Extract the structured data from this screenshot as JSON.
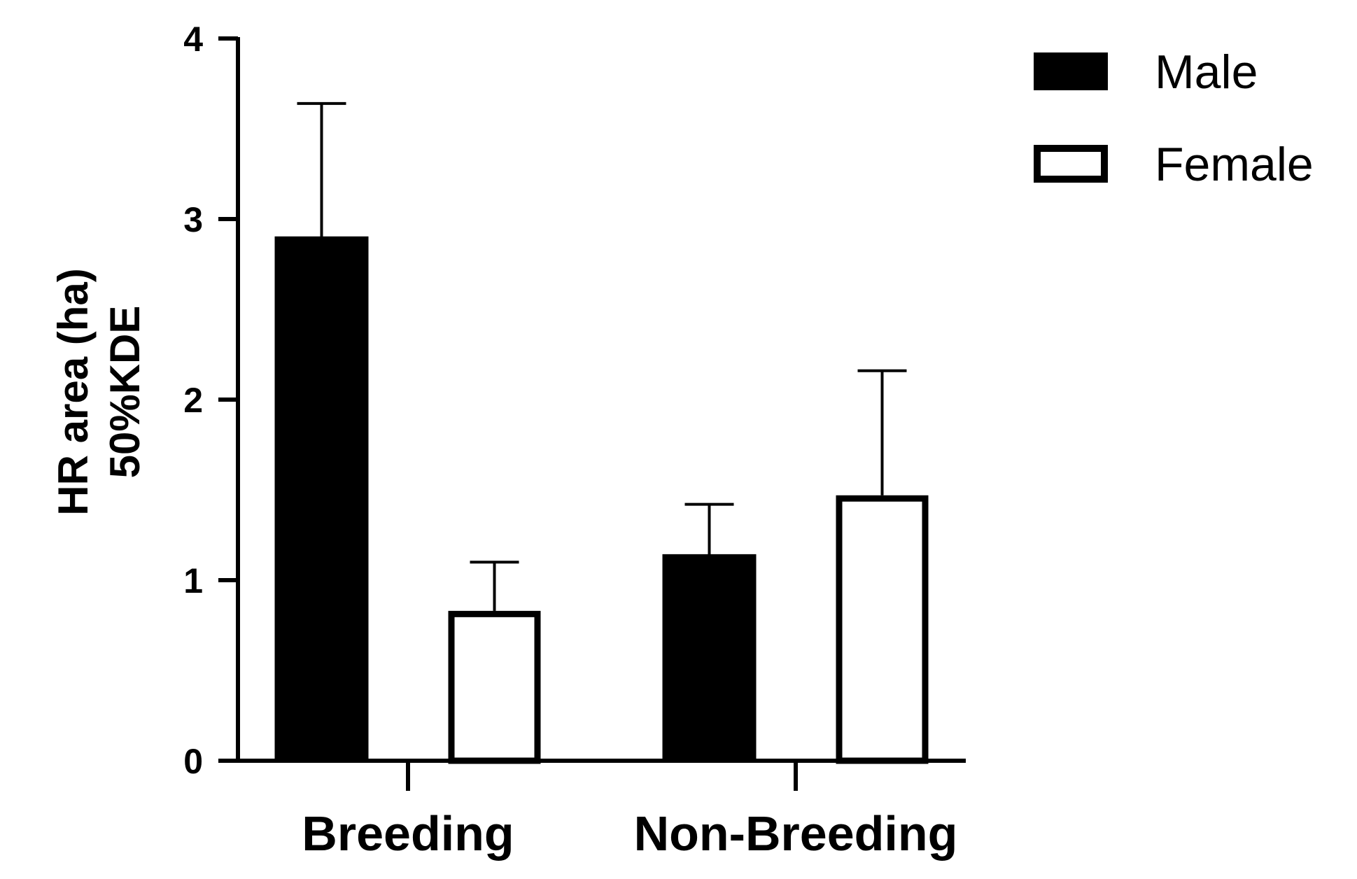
{
  "chart_data": {
    "type": "bar",
    "title": "",
    "xlabel": "",
    "ylabel_lines": [
      "HR area (ha)",
      "50%KDE"
    ],
    "categories": [
      "Breeding",
      "Non-Breeding"
    ],
    "series": [
      {
        "name": "Male",
        "values": [
          2.9,
          1.14
        ],
        "errors": [
          0.74,
          0.28
        ],
        "fill": "#000000"
      },
      {
        "name": "Female",
        "values": [
          0.83,
          1.47
        ],
        "errors": [
          0.27,
          0.69
        ],
        "fill": "#ffffff"
      }
    ],
    "ylim": [
      0,
      4
    ],
    "yticks": [
      "0",
      "1",
      "2",
      "3",
      "4"
    ],
    "grid": false,
    "legend_position": "top-right",
    "colors": {
      "axis": "#000000",
      "male": "#000000",
      "female": "#ffffff"
    }
  }
}
